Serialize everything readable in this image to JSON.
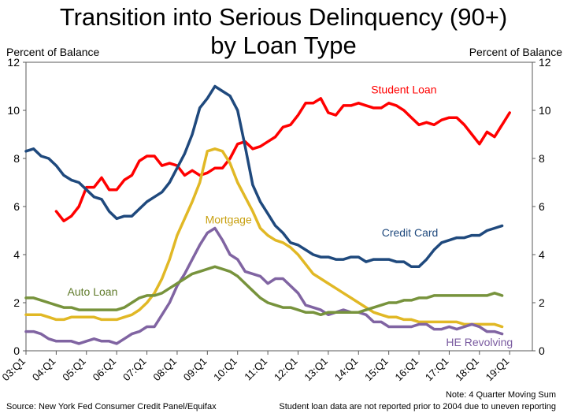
{
  "chart_data": {
    "type": "line",
    "title_line1": "Transition into Serious Delinquency (90+)",
    "title_line2": "by Loan Type",
    "ylabel_left": "Percent of Balance",
    "ylabel_right": "Percent of Balance",
    "ylim": [
      0,
      12
    ],
    "yticks": [
      0,
      2,
      4,
      6,
      8,
      10,
      12
    ],
    "xlim": [
      2003.0,
      2019.75
    ],
    "xticks": [
      {
        "label": "03:Q1",
        "x": 2003.0
      },
      {
        "label": "04:Q1",
        "x": 2004.0
      },
      {
        "label": "05:Q1",
        "x": 2005.0
      },
      {
        "label": "06:Q1",
        "x": 2006.0
      },
      {
        "label": "07:Q1",
        "x": 2007.0
      },
      {
        "label": "08:Q1",
        "x": 2008.0
      },
      {
        "label": "09:Q1",
        "x": 2009.0
      },
      {
        "label": "10:Q1",
        "x": 2010.0
      },
      {
        "label": "11:Q1",
        "x": 2011.0
      },
      {
        "label": "12:Q1",
        "x": 2012.0
      },
      {
        "label": "13:Q1",
        "x": 2013.0
      },
      {
        "label": "14:Q1",
        "x": 2014.0
      },
      {
        "label": "15:Q1",
        "x": 2015.0
      },
      {
        "label": "16:Q1",
        "x": 2016.0
      },
      {
        "label": "17:Q1",
        "x": 2017.0
      },
      {
        "label": "18:Q1",
        "x": 2018.0
      },
      {
        "label": "19:Q1",
        "x": 2019.0
      }
    ],
    "grid": false,
    "series": [
      {
        "name": "Student Loan",
        "color": "#ff0000",
        "x_start": 2004.0,
        "values": [
          5.8,
          5.4,
          5.6,
          6.0,
          6.8,
          6.8,
          7.2,
          6.7,
          6.7,
          7.1,
          7.3,
          7.9,
          8.1,
          8.1,
          7.7,
          7.8,
          7.7,
          7.3,
          7.5,
          7.3,
          7.4,
          7.6,
          7.6,
          8.0,
          8.6,
          8.7,
          8.4,
          8.5,
          8.7,
          8.9,
          9.3,
          9.4,
          9.8,
          10.3,
          10.3,
          10.5,
          9.9,
          9.8,
          10.2,
          10.2,
          10.3,
          10.2,
          10.1,
          10.1,
          10.3,
          10.2,
          10.0,
          9.7,
          9.4,
          9.5,
          9.4,
          9.6,
          9.7,
          9.7,
          9.4,
          9.0,
          8.6,
          9.1,
          8.9,
          9.4,
          9.9
        ]
      },
      {
        "name": "Credit Card",
        "color": "#1f497d",
        "x_start": 2003.0,
        "values": [
          8.3,
          8.4,
          8.1,
          8.0,
          7.7,
          7.3,
          7.1,
          7.0,
          6.7,
          6.4,
          6.3,
          5.8,
          5.5,
          5.6,
          5.6,
          5.9,
          6.2,
          6.4,
          6.6,
          7.0,
          7.6,
          8.2,
          9.0,
          10.1,
          10.5,
          11.0,
          10.8,
          10.6,
          10.0,
          8.5,
          6.9,
          6.2,
          5.7,
          5.2,
          4.9,
          4.5,
          4.4,
          4.2,
          4.0,
          3.9,
          3.9,
          3.8,
          3.8,
          3.9,
          3.9,
          3.7,
          3.8,
          3.8,
          3.8,
          3.7,
          3.7,
          3.5,
          3.5,
          3.8,
          4.2,
          4.5,
          4.6,
          4.7,
          4.7,
          4.8,
          4.8,
          5.0,
          5.1,
          5.2
        ]
      },
      {
        "name": "Mortgage",
        "color": "#e1b825",
        "x_start": 2003.0,
        "values": [
          1.5,
          1.5,
          1.5,
          1.4,
          1.3,
          1.3,
          1.4,
          1.4,
          1.4,
          1.4,
          1.3,
          1.3,
          1.3,
          1.4,
          1.5,
          1.7,
          2.0,
          2.4,
          3.0,
          3.8,
          4.8,
          5.5,
          6.2,
          7.0,
          8.3,
          8.4,
          8.3,
          7.8,
          7.0,
          6.4,
          5.8,
          5.1,
          4.8,
          4.6,
          4.5,
          4.3,
          4.0,
          3.6,
          3.2,
          3.0,
          2.8,
          2.6,
          2.4,
          2.2,
          2.0,
          1.8,
          1.6,
          1.5,
          1.4,
          1.4,
          1.3,
          1.3,
          1.2,
          1.2,
          1.2,
          1.2,
          1.2,
          1.2,
          1.1,
          1.1,
          1.1,
          1.1,
          1.1,
          1.0
        ]
      },
      {
        "name": "HE Revolving",
        "color": "#8064a2",
        "x_start": 2003.0,
        "values": [
          0.8,
          0.8,
          0.7,
          0.5,
          0.4,
          0.4,
          0.4,
          0.3,
          0.4,
          0.5,
          0.4,
          0.4,
          0.3,
          0.5,
          0.7,
          0.8,
          1.0,
          1.0,
          1.5,
          2.0,
          2.7,
          3.2,
          3.8,
          4.4,
          4.9,
          5.1,
          4.6,
          4.0,
          3.8,
          3.3,
          3.2,
          3.1,
          2.8,
          3.0,
          3.0,
          2.7,
          2.4,
          1.9,
          1.8,
          1.7,
          1.5,
          1.6,
          1.7,
          1.6,
          1.6,
          1.5,
          1.2,
          1.2,
          1.0,
          1.0,
          1.0,
          1.0,
          1.1,
          1.1,
          0.9,
          0.9,
          1.0,
          0.9,
          1.0,
          1.1,
          1.0,
          0.8,
          0.8,
          0.7
        ]
      },
      {
        "name": "Auto Loan",
        "color": "#77933c",
        "x_start": 2003.0,
        "values": [
          2.2,
          2.2,
          2.1,
          2.0,
          1.9,
          1.8,
          1.8,
          1.7,
          1.7,
          1.7,
          1.7,
          1.7,
          1.7,
          1.8,
          2.0,
          2.2,
          2.3,
          2.3,
          2.4,
          2.6,
          2.8,
          3.0,
          3.2,
          3.3,
          3.4,
          3.5,
          3.4,
          3.3,
          3.1,
          2.8,
          2.5,
          2.2,
          2.0,
          1.9,
          1.8,
          1.8,
          1.7,
          1.6,
          1.6,
          1.5,
          1.6,
          1.6,
          1.6,
          1.6,
          1.6,
          1.7,
          1.8,
          1.9,
          2.0,
          2.0,
          2.1,
          2.1,
          2.2,
          2.2,
          2.3,
          2.3,
          2.3,
          2.3,
          2.3,
          2.3,
          2.3,
          2.3,
          2.4,
          2.3
        ]
      }
    ],
    "annotations": {
      "note_line1": "Note: 4 Quarter Moving Sum",
      "note_line2": "Student loan data are not reported prior to 2004 due to uneven reporting",
      "source": "Source: New York Fed Consumer Credit Panel/Equifax"
    }
  }
}
